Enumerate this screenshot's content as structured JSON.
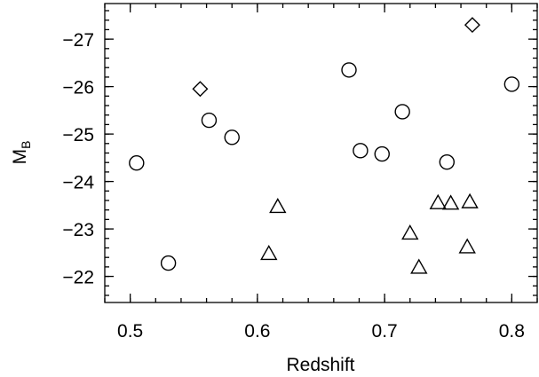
{
  "chart_data": {
    "type": "scatter",
    "title": "",
    "xlabel": "Redshift",
    "ylabel": {
      "main": "M",
      "subscript": "B"
    },
    "xlim": [
      0.48,
      0.82
    ],
    "ylim": [
      -21.45,
      -27.75
    ],
    "x_ticks": [
      0.5,
      0.6,
      0.7,
      0.8
    ],
    "x_tick_labels": [
      "0.5",
      "0.6",
      "0.7",
      "0.8"
    ],
    "x_minor_step": 0.02,
    "y_ticks": [
      -27,
      -26,
      -25,
      -24,
      -23,
      -22
    ],
    "y_tick_labels": [
      "−27",
      "−26",
      "−25",
      "−24",
      "−23",
      "−22"
    ],
    "y_minor_step": 0.2,
    "grid": false,
    "series": [
      {
        "marker": "circle",
        "x": [
          0.505,
          0.53,
          0.562,
          0.58,
          0.672,
          0.681,
          0.698,
          0.714,
          0.749,
          0.8
        ],
        "y": [
          -24.39,
          -22.28,
          -25.29,
          -24.93,
          -26.35,
          -24.65,
          -24.58,
          -25.47,
          -24.41,
          -26.05
        ]
      },
      {
        "marker": "diamond",
        "x": [
          0.555,
          0.769
        ],
        "y": [
          -25.95,
          -27.3
        ]
      },
      {
        "marker": "triangle",
        "x": [
          0.609,
          0.616,
          0.72,
          0.727,
          0.742,
          0.752,
          0.765,
          0.767
        ],
        "y": [
          -22.47,
          -23.46,
          -22.9,
          -22.18,
          -23.54,
          -23.53,
          -22.61,
          -23.56
        ]
      }
    ]
  }
}
